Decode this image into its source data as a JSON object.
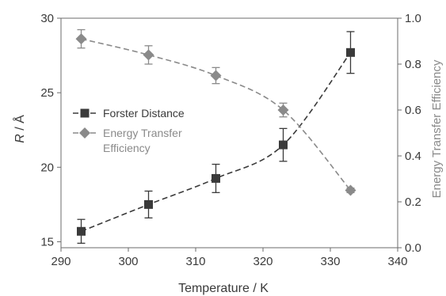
{
  "chart_data": {
    "type": "line",
    "x": [
      293,
      303,
      313,
      323,
      333
    ],
    "xlim": [
      290,
      340
    ],
    "xticks": [
      290,
      300,
      310,
      320,
      330,
      340
    ],
    "xlabel": "Temperature / K",
    "ylabel_left_italic": "R",
    "ylabel_left_rest": " / Å",
    "ylabel_right": "Energy Transfer Efficiency",
    "ylim_left": [
      14.6,
      30
    ],
    "yticks_left": [
      15,
      20,
      25,
      30
    ],
    "ylim_right": [
      0.0,
      1.0
    ],
    "yticks_right": [
      0.0,
      0.2,
      0.4,
      0.6,
      0.8,
      1.0
    ],
    "tick_decimals_right": 1,
    "legend_position": "center-left",
    "series": [
      {
        "name": "Forster Distance",
        "axis": "left",
        "marker": "square",
        "color": "#3a3a3a",
        "values": [
          15.7,
          17.5,
          19.25,
          21.5,
          27.7
        ],
        "errors": [
          0.8,
          0.9,
          0.95,
          1.1,
          1.4
        ]
      },
      {
        "name_lines": [
          "Energy Transfer",
          "Efficiency"
        ],
        "axis": "right",
        "marker": "diamond",
        "color": "#8a8a8a",
        "values": [
          0.91,
          0.84,
          0.75,
          0.6,
          0.25
        ],
        "errors": [
          0.04,
          0.04,
          0.035,
          0.03,
          0.01
        ]
      }
    ]
  }
}
